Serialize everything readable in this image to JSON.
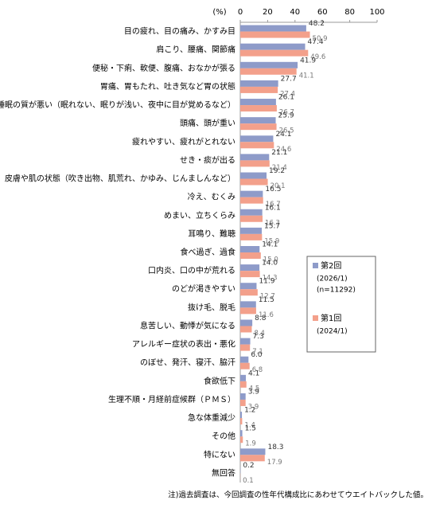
{
  "chart_data": {
    "type": "hbar",
    "axis_unit": "(%)",
    "categories": [
      "目の疲れ、目の痛み、かすみ目",
      "肩こり、腰痛、関節痛",
      "便秘・下痢、軟便、腹痛、おなかが張る",
      "胃痛、胃もたれ、吐き気など胃の状態",
      "睡眠の質が悪い（眠れない、眠りが浅い、夜中に目が覚めるなど）",
      "頭痛、頭が重い",
      "疲れやすい、疲れがとれない",
      "せき・痰が出る",
      "皮膚や肌の状態（吹き出物、肌荒れ、かゆみ、じんましんなど）",
      "冷え、むくみ",
      "めまい、立ちくらみ",
      "耳鳴り、難聴",
      "食べ過ぎ、過食",
      "口内炎、口の中が荒れる",
      "のどが渇きやすい",
      "抜け毛、脱毛",
      "息苦しい、動悸が気になる",
      "アレルギー症状の表出・悪化",
      "のぼせ、発汗、寝汗、脇汗",
      "食欲低下",
      "生理不順・月経前症候群（ＰＭＳ）",
      "急な体重減少",
      "その他",
      "特にない",
      "無回答"
    ],
    "series": [
      {
        "name": "第2回",
        "legend_lines": [
          "(2026/1)",
          "(n=11292)"
        ],
        "color": "#8e9bc9",
        "values": [
          48.2,
          47.4,
          41.9,
          27.7,
          26.1,
          25.9,
          24.1,
          21.1,
          19.2,
          16.5,
          16.1,
          15.7,
          14.1,
          14.0,
          11.9,
          11.5,
          8.8,
          7.3,
          6.0,
          4.1,
          3.9,
          1.2,
          1.5,
          18.3,
          0.2
        ],
        "value_labels": [
          "48.2",
          "47.4",
          "41.9",
          "27.7",
          "26.1",
          "25.9",
          "24.1",
          "21.1",
          "19.2",
          "16.5",
          "16.1",
          "15.7",
          "14.1",
          "14.0",
          "11.9",
          "11.5",
          "8.8",
          "7.3",
          "6.0",
          "4.1",
          "3.9",
          "1.2",
          "1.5",
          "18.3",
          "0.2"
        ]
      },
      {
        "name": "第1回",
        "legend_lines": [
          "(2024/1)"
        ],
        "color": "#f3a08b",
        "values": [
          50.9,
          49.6,
          41.1,
          27.4,
          26.7,
          26.5,
          24.6,
          21.4,
          20.1,
          16.7,
          16.3,
          15.9,
          15.0,
          14.3,
          12.7,
          11.6,
          8.4,
          7.1,
          6.8,
          4.5,
          3.9,
          1.4,
          1.9,
          17.9,
          0.1
        ],
        "value_labels": [
          "50.9",
          "49.6",
          "41.1",
          "27.4",
          "26.7",
          "26.5",
          "24.6",
          "21.4",
          "20.1",
          "16.7",
          "16.3",
          "15.9",
          "15.0",
          "14.3",
          "12.7",
          "11.6",
          "8.4",
          "7.1",
          "6.8",
          "4.5",
          "3.9",
          "1.4",
          "1.9",
          "17.9",
          "0.1"
        ]
      }
    ],
    "xlim": [
      0,
      100
    ],
    "xticks": [
      0,
      20,
      40,
      60,
      80,
      100
    ],
    "grid": false,
    "footnote": "注)過去調査は、今回調査の性年代構成比にあわせてウエイトバックした値。"
  }
}
